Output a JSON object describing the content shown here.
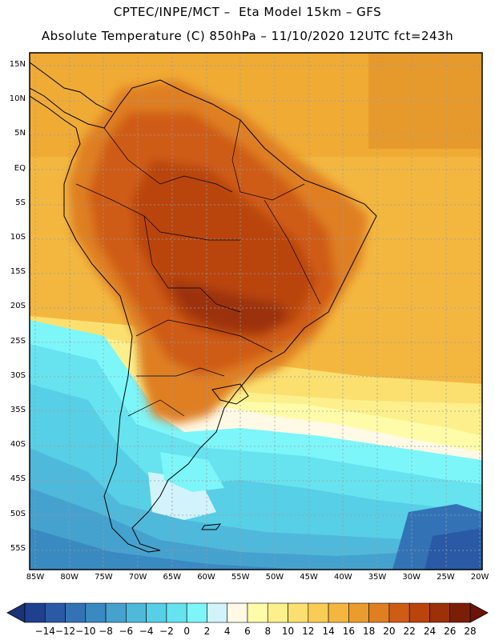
{
  "header": {
    "title_line1": "CPTEC/INPE/MCT –  Eta Model 15km – GFS",
    "title_line2": "Absolute Temperature (C) 850hPa – 11/10/2020 12UTC fct=243h"
  },
  "map": {
    "lat_labels": [
      "15N",
      "10N",
      "5N",
      "EQ",
      "5S",
      "10S",
      "15S",
      "20S",
      "25S",
      "30S",
      "35S",
      "40S",
      "45S",
      "50S",
      "55S"
    ],
    "lon_labels": [
      "85W",
      "80W",
      "75W",
      "70W",
      "65W",
      "60W",
      "55W",
      "50W",
      "45W",
      "40W",
      "35W",
      "30W",
      "25W",
      "20W"
    ]
  },
  "colorbar": {
    "labels": [
      "-14",
      "-12",
      "-10",
      "-8",
      "-6",
      "-4",
      "-2",
      "0",
      "2",
      "4",
      "6",
      "8",
      "10",
      "12",
      "14",
      "16",
      "18",
      "20",
      "22",
      "24",
      "26",
      "28"
    ],
    "colors": [
      "#1f3f8f",
      "#2a5aa5",
      "#3373b5",
      "#3a8ac2",
      "#45a2cf",
      "#4fb9dc",
      "#57cfe6",
      "#66e3ef",
      "#7df6fa",
      "#d2f3fb",
      "#fff9e6",
      "#fffca9",
      "#fdf08c",
      "#fbe070",
      "#f8cc55",
      "#f3b740",
      "#eb9c2e",
      "#df7f22",
      "#cf5c14",
      "#b9440c",
      "#9c3008",
      "#7a1f06"
    ],
    "under_color": "#1c3378",
    "over_color": "#6d1206"
  }
}
